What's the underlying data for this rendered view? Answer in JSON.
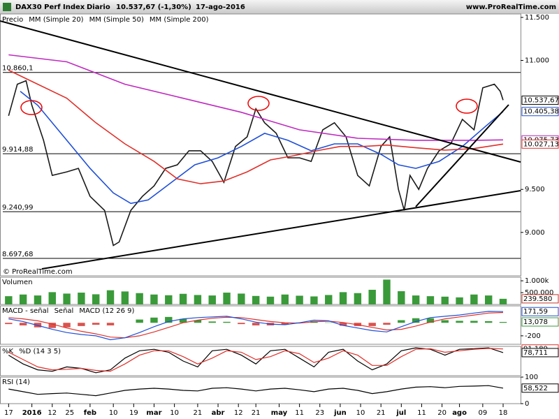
{
  "chart_data": [
    {
      "type": "line",
      "title": "DAX30 Perf Index",
      "period": "Diario",
      "change": "10.537,67 (-1,30%)",
      "date": "17-ago-2016",
      "source": "www.ProRealTime.com",
      "watermark": "© ProRealTime.com",
      "xlim": [
        -2,
        176
      ],
      "xticks": [
        {
          "value": 0,
          "label": "17"
        },
        {
          "value": 8,
          "label": "2016"
        },
        {
          "value": 15,
          "label": "12"
        },
        {
          "value": 21,
          "label": "25"
        },
        {
          "value": 28,
          "label": "feb"
        },
        {
          "value": 36,
          "label": "10"
        },
        {
          "value": 43,
          "label": "19"
        },
        {
          "value": 50,
          "label": "mar"
        },
        {
          "value": 57,
          "label": "10"
        },
        {
          "value": 65,
          "label": "21"
        },
        {
          "value": 72,
          "label": "abr"
        },
        {
          "value": 79,
          "label": "12"
        },
        {
          "value": 85,
          "label": "21"
        },
        {
          "value": 93,
          "label": "may"
        },
        {
          "value": 100,
          "label": "11"
        },
        {
          "value": 107,
          "label": "23"
        },
        {
          "value": 114,
          "label": "jun"
        },
        {
          "value": 121,
          "label": "10"
        },
        {
          "value": 128,
          "label": "21"
        },
        {
          "value": 135,
          "label": "jul"
        },
        {
          "value": 142,
          "label": "11"
        },
        {
          "value": 149,
          "label": "20"
        },
        {
          "value": 155,
          "label": "ago"
        },
        {
          "value": 163,
          "label": "09"
        },
        {
          "value": 170,
          "label": "18"
        }
      ],
      "ylim": [
        8495,
        11540
      ],
      "yticks": [
        {
          "value": 11500,
          "label": "11.500"
        },
        {
          "value": 11000,
          "label": "11.000"
        },
        {
          "value": 9500,
          "label": "9.500"
        },
        {
          "value": 9000,
          "label": "9.000"
        }
      ],
      "levels": [
        {
          "value": 10860.1,
          "label": "10.860,1"
        },
        {
          "value": 9914.88,
          "label": "9.914,88"
        },
        {
          "value": 9240.99,
          "label": "9.240,99"
        },
        {
          "value": 8697.68,
          "label": "8.697,68"
        }
      ],
      "tags": [
        {
          "value": 10537.67,
          "label": "10.537,67",
          "color": "#000000"
        },
        {
          "value": 10405.38,
          "label": "10.405,38",
          "color": "#1f4fd8"
        },
        {
          "value": 10075.73,
          "label": "10.075,73",
          "color": "#c02ac0"
        },
        {
          "value": 10027.13,
          "label": "10.027,13",
          "color": "#e0302a"
        }
      ],
      "series": [
        {
          "name": "Precio",
          "color": "#1a1a1a",
          "style": "line",
          "x": [
            0,
            3,
            6,
            8,
            12,
            15,
            20,
            24,
            28,
            33,
            36,
            38,
            42,
            46,
            50,
            54,
            58,
            62,
            66,
            70,
            74,
            78,
            82,
            85,
            88,
            92,
            96,
            100,
            104,
            108,
            112,
            116,
            120,
            124,
            128,
            131,
            134,
            136,
            138,
            141,
            144,
            148,
            152,
            156,
            160,
            163,
            167,
            169,
            170
          ],
          "values": [
            10356,
            10723,
            10764,
            10478,
            10071,
            9663,
            9704,
            9745,
            9419,
            9256,
            8848,
            8889,
            9256,
            9419,
            9541,
            9745,
            9786,
            9949,
            9949,
            9826,
            9582,
            10000,
            10112,
            10437,
            10275,
            10152,
            9867,
            9867,
            9826,
            10193,
            10275,
            10112,
            9663,
            9541,
            10000,
            10112,
            9500,
            9256,
            9663,
            9500,
            9745,
            9949,
            10030,
            10315,
            10193,
            10682,
            10723,
            10641,
            10537.67
          ]
        },
        {
          "name": "MM (Simple 20)",
          "color": "#1f4fd8",
          "style": "line",
          "x": [
            4,
            10,
            20,
            28,
            36,
            42,
            48,
            56,
            64,
            72,
            80,
            88,
            96,
            104,
            112,
            120,
            128,
            134,
            140,
            148,
            156,
            164,
            170
          ],
          "values": [
            10641,
            10478,
            10071,
            9745,
            9459,
            9337,
            9378,
            9582,
            9786,
            9867,
            10000,
            10152,
            10071,
            9949,
            10030,
            10030,
            9908,
            9786,
            9745,
            9826,
            10000,
            10234,
            10405.38
          ]
        },
        {
          "name": "MM (Simple 50)",
          "color": "#e0302a",
          "style": "line",
          "x": [
            0,
            10,
            20,
            30,
            40,
            50,
            58,
            66,
            74,
            82,
            90,
            98,
            106,
            114,
            122,
            130,
            140,
            150,
            160,
            170
          ],
          "values": [
            10886,
            10723,
            10560,
            10275,
            10030,
            9826,
            9623,
            9566,
            9598,
            9704,
            9843,
            9892,
            9949,
            10000,
            10000,
            10016,
            9984,
            9957,
            9975,
            10027.13
          ]
        },
        {
          "name": "MM (Simple 200)",
          "color": "#c02ac0",
          "style": "line",
          "x": [
            0,
            20,
            40,
            60,
            80,
            100,
            120,
            140,
            160,
            170
          ],
          "values": [
            11065,
            10984,
            10723,
            10560,
            10397,
            10193,
            10095,
            10071,
            10071,
            10075.73
          ]
        }
      ]
    },
    {
      "type": "bar",
      "ylim": [
        0,
        1150000
      ],
      "yticks": [
        {
          "value": 1000000,
          "label": "1.000k"
        },
        {
          "value": 500000,
          "label": "500.000"
        }
      ],
      "tags": [
        {
          "value": 239580,
          "label": "239.580",
          "color": "#c0392b"
        }
      ],
      "series": [
        {
          "name": "Volumen",
          "color": "#3a9a3a",
          "style": "bar",
          "x": [
            0,
            5,
            10,
            15,
            20,
            25,
            30,
            35,
            40,
            45,
            50,
            55,
            60,
            65,
            70,
            75,
            80,
            85,
            90,
            95,
            100,
            105,
            110,
            115,
            120,
            125,
            130,
            135,
            140,
            145,
            150,
            155,
            160,
            165,
            170
          ],
          "values": [
            350000,
            420000,
            380000,
            520000,
            460000,
            500000,
            430000,
            600000,
            550000,
            480000,
            420000,
            390000,
            450000,
            400000,
            380000,
            500000,
            460000,
            360000,
            330000,
            420000,
            370000,
            340000,
            400000,
            520000,
            480000,
            620000,
            1050000,
            560000,
            380000,
            350000,
            330000,
            300000,
            420000,
            380000,
            239580
          ]
        }
      ]
    },
    {
      "type": "macd",
      "ylim": [
        -330,
        260
      ],
      "yticks": [
        -200
      ],
      "tags": [
        {
          "value": 171.59,
          "label": "171,59",
          "color": "#1f4fd8"
        },
        {
          "value": 13.078,
          "label": "13,078",
          "color": "#3a9a3a"
        }
      ],
      "series": [
        {
          "name": "MACD - señal",
          "color": "#3a9a3a",
          "style": "bar",
          "x": [
            0,
            5,
            10,
            15,
            20,
            25,
            30,
            35,
            40,
            45,
            50,
            55,
            60,
            65,
            70,
            75,
            80,
            85,
            90,
            95,
            100,
            105,
            110,
            115,
            120,
            125,
            130,
            135,
            140,
            145,
            150,
            155,
            160,
            165,
            170
          ],
          "values": [
            -20,
            -40,
            -70,
            -80,
            -70,
            -50,
            -30,
            -40,
            0,
            50,
            80,
            90,
            60,
            40,
            20,
            15,
            -20,
            -40,
            -40,
            -30,
            5,
            25,
            5,
            -45,
            -50,
            -50,
            -30,
            40,
            70,
            70,
            40,
            30,
            30,
            25,
            13.078
          ]
        },
        {
          "name": "Señal",
          "color": "#e0302a",
          "style": "line",
          "x": [
            0,
            5,
            10,
            15,
            20,
            25,
            30,
            35,
            40,
            45,
            50,
            55,
            60,
            65,
            70,
            75,
            80,
            85,
            90,
            95,
            100,
            105,
            110,
            115,
            120,
            125,
            130,
            135,
            140,
            145,
            150,
            155,
            160,
            165,
            170
          ],
          "values": [
            80,
            60,
            30,
            -20,
            -80,
            -130,
            -170,
            -220,
            -230,
            -200,
            -140,
            -70,
            0,
            40,
            70,
            85,
            80,
            50,
            20,
            0,
            -5,
            15,
            25,
            5,
            -30,
            -70,
            -110,
            -100,
            -50,
            10,
            60,
            90,
            120,
            150,
            158.5
          ]
        },
        {
          "name": "MACD (12 26 9)",
          "color": "#1f4fd8",
          "style": "line",
          "x": [
            0,
            5,
            10,
            15,
            20,
            25,
            30,
            35,
            40,
            45,
            50,
            55,
            60,
            65,
            70,
            75,
            80,
            85,
            90,
            95,
            100,
            105,
            110,
            115,
            120,
            125,
            130,
            135,
            140,
            145,
            150,
            155,
            160,
            165,
            170
          ],
          "values": [
            60,
            20,
            -40,
            -100,
            -150,
            -180,
            -200,
            -260,
            -230,
            -150,
            -60,
            20,
            60,
            80,
            90,
            100,
            60,
            10,
            -20,
            -30,
            0,
            40,
            30,
            -40,
            -80,
            -120,
            -140,
            -60,
            20,
            80,
            100,
            120,
            150,
            175,
            171.59
          ]
        }
      ]
    },
    {
      "type": "stochastic",
      "ylim": [
        0,
        100
      ],
      "tags": [
        {
          "value": 91.189,
          "label": "91,189",
          "color": "#e0302a"
        },
        {
          "value": 78.711,
          "label": "78,711",
          "color": "#000000"
        }
      ],
      "series": [
        {
          "name": "%K",
          "color": "#000000",
          "style": "line",
          "x": [
            0,
            5,
            10,
            15,
            20,
            25,
            30,
            35,
            40,
            45,
            50,
            55,
            60,
            65,
            70,
            75,
            80,
            85,
            90,
            95,
            100,
            105,
            110,
            115,
            120,
            125,
            130,
            135,
            140,
            145,
            150,
            155,
            160,
            165,
            170
          ],
          "values": [
            70,
            40,
            20,
            15,
            30,
            25,
            10,
            20,
            60,
            85,
            90,
            80,
            50,
            30,
            85,
            90,
            70,
            40,
            85,
            90,
            60,
            30,
            80,
            90,
            50,
            20,
            40,
            85,
            95,
            90,
            70,
            90,
            92,
            95,
            78.711
          ]
        },
        {
          "name": "%D (14 3 5)",
          "color": "#e0302a",
          "style": "line",
          "x": [
            0,
            5,
            10,
            15,
            20,
            25,
            30,
            35,
            40,
            45,
            50,
            55,
            60,
            65,
            70,
            75,
            80,
            85,
            90,
            95,
            100,
            105,
            110,
            115,
            120,
            125,
            130,
            135,
            140,
            145,
            150,
            155,
            160,
            165,
            170
          ],
          "values": [
            80,
            55,
            30,
            20,
            22,
            25,
            18,
            15,
            40,
            70,
            85,
            85,
            65,
            40,
            60,
            85,
            80,
            55,
            65,
            85,
            75,
            45,
            60,
            85,
            70,
            35,
            35,
            65,
            90,
            92,
            80,
            85,
            90,
            93,
            91.189
          ]
        }
      ]
    },
    {
      "type": "rsi",
      "ylim": [
        0,
        100
      ],
      "yticks": [
        0,
        100
      ],
      "tags": [
        {
          "value": 58.522,
          "label": "58,522",
          "color": "#000000"
        }
      ],
      "series": [
        {
          "name": "RSI (14)",
          "color": "#000000",
          "style": "line",
          "x": [
            0,
            5,
            10,
            15,
            20,
            25,
            30,
            35,
            40,
            45,
            50,
            55,
            60,
            65,
            70,
            75,
            80,
            85,
            90,
            95,
            100,
            105,
            110,
            115,
            120,
            125,
            130,
            135,
            140,
            145,
            150,
            155,
            160,
            165,
            170
          ],
          "values": [
            55,
            45,
            35,
            38,
            40,
            35,
            30,
            40,
            50,
            55,
            58,
            55,
            50,
            48,
            58,
            60,
            55,
            48,
            55,
            58,
            52,
            45,
            55,
            58,
            50,
            38,
            45,
            55,
            62,
            64,
            60,
            65,
            66,
            68,
            58.522
          ]
        }
      ]
    }
  ]
}
